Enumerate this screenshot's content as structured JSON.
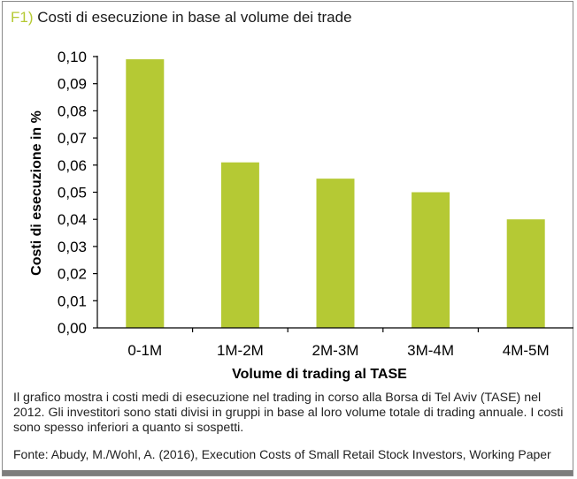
{
  "title": {
    "tag": "F1)",
    "text": "Costi di esecuzione in base al volume dei trade"
  },
  "caption": "Il grafico mostra i costi medi di esecuzione nel trading in corso alla Borsa di Tel Aviv (TASE) nel 2012. Gli investitori sono stati divisi in gruppi in base al loro volume totale di trading annuale. I costi sono spesso inferiori a quanto si sospetti.",
  "source": "Fonte: Abudy, M./Wohl, A. (2016), Execution Costs of Small Retail Stock Investors, Working Paper",
  "colors": {
    "bar": "#b5c934",
    "accent": "#b5c934",
    "axis": "#000000",
    "frame": "#8a8a8a"
  },
  "chart_data": {
    "type": "bar",
    "categories": [
      "0-1M",
      "1M-2M",
      "2M-3M",
      "3M-4M",
      "4M-5M"
    ],
    "values": [
      0.099,
      0.061,
      0.055,
      0.05,
      0.04
    ],
    "xlabel": "Volume di trading al TASE",
    "ylabel": "Costi di esecuzione in %",
    "ylim": [
      0,
      0.1
    ],
    "yticks": [
      "0,00",
      "0,01",
      "0,02",
      "0,03",
      "0,04",
      "0,05",
      "0,06",
      "0,07",
      "0,08",
      "0,09",
      "0,10"
    ],
    "grid": false,
    "legend": "none"
  }
}
